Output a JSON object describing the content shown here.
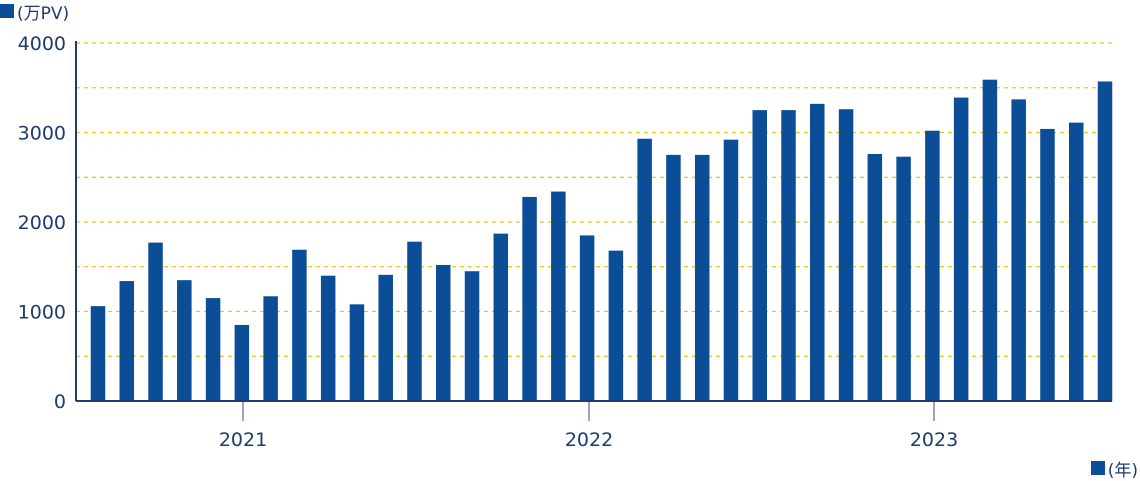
{
  "chart_data": {
    "type": "bar",
    "y_unit_label": "(万PV)",
    "x_unit_label": "(年)",
    "ylim": [
      0,
      4000
    ],
    "y_ticks": [
      "0",
      "1000",
      "2000",
      "3000",
      "4000"
    ],
    "year_labels": [
      "2021",
      "2022",
      "2023"
    ],
    "grid": "dashed horizontal every 500",
    "colors": {
      "bar": "#0b4d96",
      "grid": "#f2c40f",
      "axis": "#1f3a6e",
      "year_tick": "#9aa7bb"
    },
    "series": [
      {
        "values": [
          1060,
          1340,
          1770,
          1350,
          1150,
          850,
          1170,
          1690,
          1400,
          1080,
          1410,
          1780,
          1520,
          1450,
          1870,
          2280,
          2340,
          1850,
          1680,
          2930,
          2750,
          2750,
          2920,
          3250,
          3250,
          3320,
          3260,
          2760,
          2730,
          3020,
          3390,
          3590,
          3370,
          3040,
          3110,
          3570
        ]
      }
    ]
  }
}
